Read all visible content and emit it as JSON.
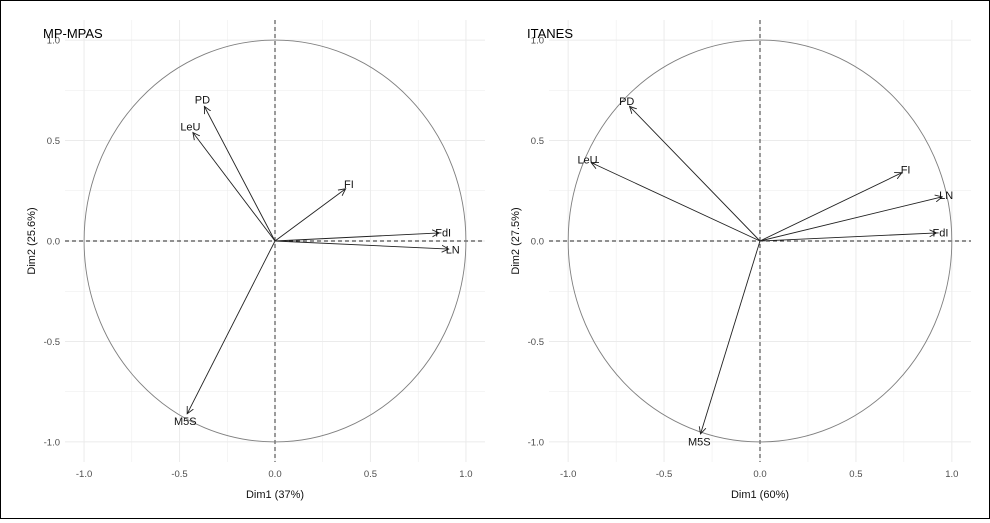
{
  "colors": {
    "background": "#ffffff",
    "grid": "#ebebeb",
    "circle": "#7f7f7f",
    "arrow": "#222222",
    "axis_text": "#4d4d4d",
    "title": "#000000"
  },
  "chart_data": [
    {
      "type": "scatter",
      "subtype": "pca-correlation-circle",
      "title": "MP-MPAS",
      "xlabel": "Dim1 (37%)",
      "ylabel": "Dim2 (25.6%)",
      "xlim": [
        -1.1,
        1.1
      ],
      "ylim": [
        -1.1,
        1.1
      ],
      "xticks": [
        -1.0,
        -0.5,
        0.0,
        0.5,
        1.0
      ],
      "yticks": [
        -1.0,
        -0.5,
        0.0,
        0.5,
        1.0
      ],
      "xtick_labels": [
        "-1.0",
        "-0.5",
        "0.0",
        "0.5",
        "1.0"
      ],
      "ytick_labels": [
        "-1.0",
        "-0.5",
        "0.0",
        "0.5",
        "1.0"
      ],
      "grid": true,
      "unit_circle": true,
      "variables": [
        {
          "name": "PD",
          "x": -0.37,
          "y": 0.67
        },
        {
          "name": "LeU",
          "x": -0.43,
          "y": 0.54
        },
        {
          "name": "FI",
          "x": 0.37,
          "y": 0.26
        },
        {
          "name": "FdI",
          "x": 0.86,
          "y": 0.04
        },
        {
          "name": "LN",
          "x": 0.91,
          "y": -0.04
        },
        {
          "name": "M5S",
          "x": -0.46,
          "y": -0.86
        }
      ]
    },
    {
      "type": "scatter",
      "subtype": "pca-correlation-circle",
      "title": "ITANES",
      "xlabel": "Dim1 (60%)",
      "ylabel": "Dim2 (27.5%)",
      "xlim": [
        -1.1,
        1.1
      ],
      "ylim": [
        -1.1,
        1.1
      ],
      "xticks": [
        -1.0,
        -0.5,
        0.0,
        0.5,
        1.0
      ],
      "yticks": [
        -1.0,
        -0.5,
        0.0,
        0.5,
        1.0
      ],
      "xtick_labels": [
        "-1.0",
        "-0.5",
        "0.0",
        "0.5",
        "1.0"
      ],
      "ytick_labels": [
        "-1.0",
        "-0.5",
        "0.0",
        "0.5",
        "1.0"
      ],
      "grid": true,
      "unit_circle": true,
      "variables": [
        {
          "name": "PD",
          "x": -0.68,
          "y": 0.67
        },
        {
          "name": "LeU",
          "x": -0.88,
          "y": 0.39
        },
        {
          "name": "FI",
          "x": 0.74,
          "y": 0.34
        },
        {
          "name": "LN",
          "x": 0.95,
          "y": 0.22
        },
        {
          "name": "FdI",
          "x": 0.92,
          "y": 0.04
        },
        {
          "name": "M5S",
          "x": -0.31,
          "y": -0.96
        }
      ]
    }
  ]
}
